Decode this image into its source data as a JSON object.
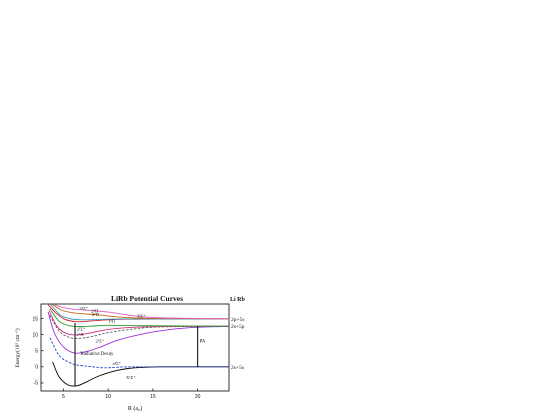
{
  "chart_data": {
    "type": "line",
    "title": "LiRb Potential Curves",
    "xlabel": "R (a₀)",
    "ylabel": "Energy(10³ cm⁻¹)",
    "xlim": [
      2.5,
      23.5
    ],
    "ylim": [
      -7.5,
      19.5
    ],
    "xticks": [
      5,
      10,
      15,
      20
    ],
    "yticks": [
      -5,
      0,
      5,
      10,
      15
    ],
    "corner_label": "Li Rb",
    "asymptotes": [
      {
        "label": "2p+5s",
        "energy": 14.9
      },
      {
        "label": "2s+5p",
        "energy": 12.6
      },
      {
        "label": "2s+5s",
        "energy": 0.0
      }
    ],
    "series": [
      {
        "name": "X¹Σ⁺",
        "color": "#000000",
        "dash": "solid",
        "points": [
          [
            3.8,
            1.5
          ],
          [
            4.5,
            -3.0
          ],
          [
            5.5,
            -5.6
          ],
          [
            6.5,
            -5.9
          ],
          [
            7.5,
            -4.8
          ],
          [
            9,
            -2.8
          ],
          [
            11,
            -1.1
          ],
          [
            13,
            -0.3
          ],
          [
            16,
            0
          ],
          [
            23.5,
            0
          ]
        ]
      },
      {
        "name": "a³Σ⁺",
        "color": "#1f3fd6",
        "dash": "dashed",
        "points": [
          [
            3.5,
            9
          ],
          [
            4.5,
            3.6
          ],
          [
            5.5,
            1.6
          ],
          [
            6.5,
            0.6
          ],
          [
            8,
            0.1
          ],
          [
            9.5,
            -0.3
          ],
          [
            11,
            -0.15
          ],
          [
            13,
            0
          ],
          [
            23.5,
            0
          ]
        ]
      },
      {
        "name": "2¹Σ⁺",
        "color": "#9b30d9",
        "dash": "solid",
        "points": [
          [
            3.3,
            17
          ],
          [
            4,
            10.5
          ],
          [
            5,
            6.2
          ],
          [
            6.2,
            4.3
          ],
          [
            7.5,
            4.7
          ],
          [
            9,
            6.0
          ],
          [
            11,
            8.2
          ],
          [
            14,
            10.3
          ],
          [
            17,
            11.6
          ],
          [
            20,
            12.3
          ],
          [
            23.5,
            12.55
          ]
        ]
      },
      {
        "name": "1¹Π",
        "color": "#5a5a5a",
        "dash": "dashed",
        "points": [
          [
            3.5,
            16
          ],
          [
            4.5,
            11.2
          ],
          [
            5.5,
            9.3
          ],
          [
            6.5,
            8.8
          ],
          [
            8,
            9.3
          ],
          [
            10,
            10.6
          ],
          [
            13,
            11.8
          ],
          [
            16,
            12.4
          ],
          [
            23.5,
            12.6
          ]
        ]
      },
      {
        "name": "2³Σ⁺",
        "color": "#d0317f",
        "dash": "solid",
        "points": [
          [
            3.4,
            17.5
          ],
          [
            4.3,
            12.5
          ],
          [
            5.3,
            10.4
          ],
          [
            6.5,
            9.9
          ],
          [
            8,
            10.5
          ],
          [
            10,
            11.6
          ],
          [
            13,
            12.3
          ],
          [
            17,
            12.55
          ],
          [
            23.5,
            12.6
          ]
        ]
      },
      {
        "name": "1³Π",
        "color": "#2a9a2a",
        "dash": "solid",
        "points": [
          [
            3.5,
            18
          ],
          [
            4.5,
            14.2
          ],
          [
            5.5,
            12.9
          ],
          [
            6.5,
            12.5
          ],
          [
            8,
            12.6
          ],
          [
            10,
            12.9
          ],
          [
            14,
            12.75
          ],
          [
            23.5,
            12.6
          ]
        ]
      },
      {
        "name": "3¹Σ⁺",
        "color": "#d62020",
        "dash": "solid",
        "points": [
          [
            3.3,
            19.3
          ],
          [
            4.2,
            16.6
          ],
          [
            5.2,
            14.7
          ],
          [
            6.5,
            14.0
          ],
          [
            8,
            14.2
          ],
          [
            10,
            14.6
          ],
          [
            13,
            14.8
          ],
          [
            23.5,
            14.9
          ]
        ]
      },
      {
        "name": "3³Σ⁺",
        "color": "#3aa0c8",
        "dash": "solid",
        "points": [
          [
            3.6,
            19.3
          ],
          [
            4.6,
            16.2
          ],
          [
            5.6,
            15.0
          ],
          [
            7,
            14.6
          ],
          [
            9,
            14.7
          ],
          [
            12,
            14.85
          ],
          [
            23.5,
            14.9
          ]
        ]
      },
      {
        "name": "2³Π",
        "color": "#c46a10",
        "dash": "solid",
        "points": [
          [
            3.8,
            19.3
          ],
          [
            4.8,
            17.6
          ],
          [
            6,
            16.8
          ],
          [
            7.5,
            16.4
          ],
          [
            9,
            16.1
          ],
          [
            11,
            15.5
          ],
          [
            14,
            15.1
          ],
          [
            23.5,
            14.9
          ]
        ]
      },
      {
        "name": "2¹Π",
        "color": "#e060c0",
        "dash": "solid",
        "points": [
          [
            4,
            19.3
          ],
          [
            5,
            18.4
          ],
          [
            6.5,
            17.8
          ],
          [
            8,
            17.5
          ],
          [
            10,
            17.0
          ],
          [
            13,
            15.8
          ],
          [
            16,
            15.2
          ],
          [
            23.5,
            14.9
          ]
        ]
      }
    ],
    "curve_labels": [
      {
        "text": "3¹Σ⁺",
        "x": 6.8,
        "y": 17.6
      },
      {
        "text": "2³Π",
        "x": 8.1,
        "y": 16.9
      },
      {
        "text": "2¹Π",
        "x": 8.2,
        "y": 15.7
      },
      {
        "text": "3³Σ⁺",
        "x": 13.2,
        "y": 15.3
      },
      {
        "text": "1³Π",
        "x": 10.0,
        "y": 13.8
      },
      {
        "text": "2³Σ⁺",
        "x": 6.5,
        "y": 11.3
      },
      {
        "text": "1¹Π",
        "x": 6.5,
        "y": 9.5
      },
      {
        "text": "2¹Σ⁺",
        "x": 8.6,
        "y": 7.6
      },
      {
        "text": "a³Σ⁺",
        "x": 10.5,
        "y": 0.5
      },
      {
        "text": "X¹Σ⁺",
        "x": 12.0,
        "y": -3.8
      }
    ],
    "annotations": [
      {
        "text": "Radiative Decay",
        "x": 6.9,
        "y": 3.7
      },
      {
        "text": "PA",
        "x": 20.2,
        "y": 7.5
      }
    ],
    "arrows": [
      {
        "name": "radiative-decay",
        "x": 6.3,
        "y_from": 13.6,
        "y_to": -6.0
      },
      {
        "name": "pa",
        "x": 20.0,
        "y_from": 0.0,
        "y_to": 12.6
      }
    ],
    "grid": false,
    "legend": "none"
  }
}
